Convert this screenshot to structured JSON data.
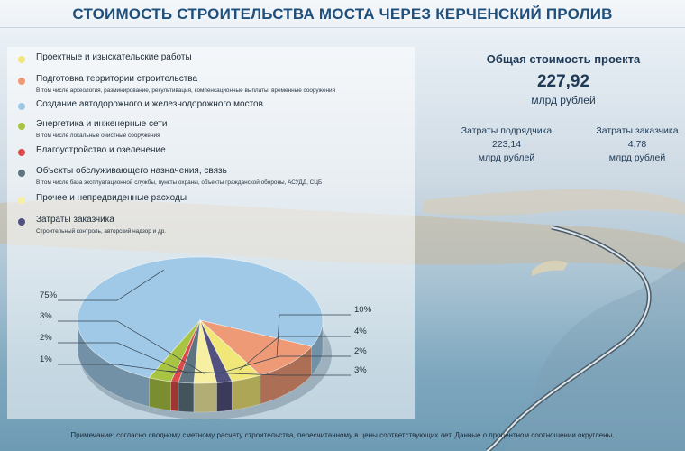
{
  "title": "СТОИМОСТЬ СТРОИТЕЛЬСТВА МОСТА ЧЕРЕЗ КЕРЧЕНСКИЙ ПРОЛИВ",
  "summary": {
    "total_label": "Общая стоимость проекта",
    "total_value": "227,92",
    "total_unit": "млрд рублей",
    "contractor_label": "Затраты подрядчика",
    "contractor_value": "223,14",
    "contractor_unit": "млрд рублей",
    "customer_label": "Затраты заказчика",
    "customer_value": "4,78",
    "customer_unit": "млрд рублей"
  },
  "legend": [
    {
      "label": "Проектные и изыскательские работы",
      "sub": "",
      "color": "#f1e779"
    },
    {
      "label": "Подготовка территории строительства",
      "sub": "В том числе археология, разминирование, рекультивация, компенсационные выплаты, временные сооружения",
      "color": "#ef9a76"
    },
    {
      "label": "Создание автодорожного и железнодорожного мостов",
      "sub": "",
      "color": "#9fc9e6"
    },
    {
      "label": "Энергетика и инженерные сети",
      "sub": "В том числе локальные очистные сооружения",
      "color": "#a9c442"
    },
    {
      "label": "Благоустройство и озеленение",
      "sub": "",
      "color": "#dc4b4b"
    },
    {
      "label": "Объекты обслуживающего назначения, связь",
      "sub": "В том числе база эксплуатационной службы, пункты охраны, объекты гражданской обороны, АСУДД, СЦБ",
      "color": "#5e7581"
    },
    {
      "label": "Прочее и непредвиденные расходы",
      "sub": "",
      "color": "#f7efa2"
    },
    {
      "label": "Затраты заказчика",
      "sub": "Строительный контроль, авторский надзор и др.",
      "color": "#52507f"
    }
  ],
  "chart_data": {
    "type": "pie",
    "title": "",
    "slices": [
      {
        "name": "Создание автодорожного и железнодорожного мостов",
        "value": 75,
        "label": "75%",
        "color": "#9fc9e6"
      },
      {
        "name": "Подготовка территории строительства",
        "value": 10,
        "label": "10%",
        "color": "#ef9a76"
      },
      {
        "name": "Проектные и изыскательские работы",
        "value": 4,
        "label": "4%",
        "color": "#f1e779"
      },
      {
        "name": "Затраты заказчика",
        "value": 2,
        "label": "2%",
        "color": "#52507f"
      },
      {
        "name": "Прочее и непредвиденные расходы",
        "value": 3,
        "label": "3%",
        "color": "#f7efa2"
      },
      {
        "name": "Объекты обслуживающего назначения, связь",
        "value": 2,
        "label": "2%",
        "color": "#5e7581"
      },
      {
        "name": "Благоустройство и озеленение",
        "value": 1,
        "label": "1%",
        "color": "#dc4b4b"
      },
      {
        "name": "Энергетика и инженерные сети",
        "value": 3,
        "label": "3%",
        "color": "#a9c442"
      }
    ],
    "legend_placement": "top-left"
  },
  "note": "Примечание: согласно сводному сметному расчету строительства, пересчитанному в цены соответствующих лет. Данные о процентном соотношении округлены."
}
